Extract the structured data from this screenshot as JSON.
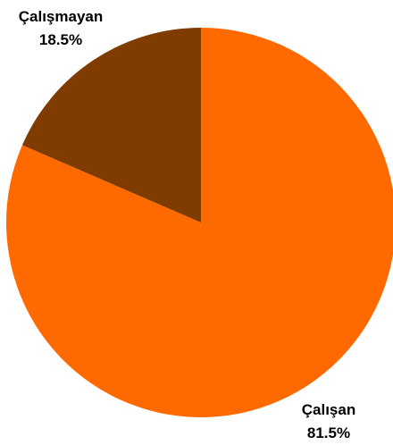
{
  "chart_data": {
    "type": "pie",
    "start_angle_deg": 0,
    "direction": "clockwise",
    "slices": [
      {
        "label": "Çalışan",
        "value": 81.5,
        "value_label": "81.5%",
        "color": "#ff6a00"
      },
      {
        "label": "Çalışmayan",
        "value": 18.5,
        "value_label": "18.5%",
        "color": "#7f3b00"
      }
    ]
  }
}
